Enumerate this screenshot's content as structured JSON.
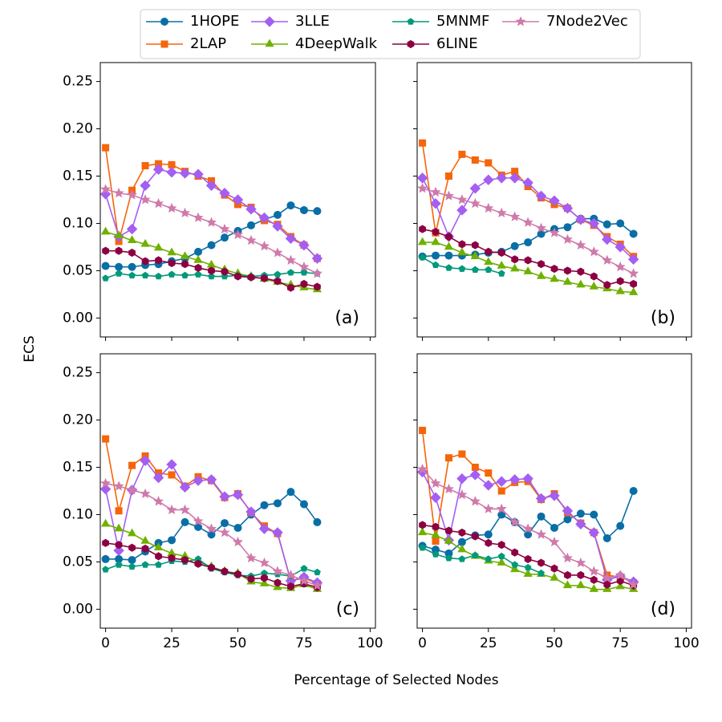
{
  "xlabel": "Percentage of Selected Nodes",
  "ylabel": "ECS",
  "chart_data": [
    {
      "type": "line",
      "annotation": "(a)",
      "x": [
        0,
        5,
        10,
        15,
        20,
        25,
        30,
        35,
        40,
        45,
        50,
        55,
        60,
        65,
        70,
        75,
        80
      ],
      "xlim": [
        -2,
        102
      ],
      "ylim": [
        -0.02,
        0.27
      ],
      "xticks": [
        0,
        25,
        50,
        75,
        100
      ],
      "yticks": [
        {
          "value": 0,
          "label": "0.00"
        },
        {
          "value": 0.05,
          "label": "0.05"
        },
        {
          "value": 0.1,
          "label": "0.10"
        },
        {
          "value": 0.15,
          "label": "0.15"
        },
        {
          "value": 0.2,
          "label": "0.20"
        },
        {
          "value": 0.25,
          "label": "0.25"
        }
      ],
      "series": [
        {
          "name": "1HOPE",
          "color": "#0a6ea6",
          "marker": "circle",
          "values": [
            0.055,
            0.054,
            0.054,
            0.056,
            0.057,
            0.06,
            0.063,
            0.07,
            0.077,
            0.085,
            0.092,
            0.098,
            0.104,
            0.109,
            0.119,
            0.114,
            0.113
          ]
        },
        {
          "name": "2LAP",
          "color": "#f5650a",
          "marker": "square",
          "values": [
            0.18,
            0.081,
            0.135,
            0.161,
            0.163,
            0.162,
            0.155,
            0.15,
            0.145,
            0.13,
            0.12,
            0.117,
            0.103,
            0.099,
            0.086,
            0.077,
            0.063
          ]
        },
        {
          "name": "3LLE",
          "color": "#a45ef2",
          "marker": "diamond",
          "values": [
            0.131,
            0.086,
            0.094,
            0.14,
            0.157,
            0.154,
            0.153,
            0.152,
            0.14,
            0.132,
            0.125,
            0.115,
            0.106,
            0.097,
            0.084,
            0.077,
            0.063
          ]
        },
        {
          "name": "4DeepWalk",
          "color": "#70b000",
          "marker": "triangle",
          "values": [
            0.091,
            0.087,
            0.082,
            0.078,
            0.074,
            0.069,
            0.065,
            0.061,
            0.056,
            0.051,
            0.047,
            0.044,
            0.041,
            0.038,
            0.035,
            0.032,
            0.03
          ]
        },
        {
          "name": "5MNMF",
          "color": "#00997a",
          "marker": "pentagon",
          "values": [
            0.042,
            0.047,
            0.045,
            0.045,
            0.044,
            0.046,
            0.045,
            0.046,
            0.044,
            0.044,
            0.045,
            0.044,
            0.045,
            0.046,
            0.048,
            0.048,
            0.047
          ]
        },
        {
          "name": "6LINE",
          "color": "#8c0042",
          "marker": "hexagon",
          "values": [
            0.071,
            0.071,
            0.069,
            0.06,
            0.061,
            0.058,
            0.057,
            0.053,
            0.05,
            0.049,
            0.044,
            0.043,
            0.042,
            0.039,
            0.032,
            0.036,
            0.033
          ]
        },
        {
          "name": "7Node2Vec",
          "color": "#cf7aab",
          "marker": "star",
          "values": [
            0.136,
            0.132,
            0.13,
            0.125,
            0.121,
            0.116,
            0.111,
            0.106,
            0.101,
            0.094,
            0.088,
            0.082,
            0.076,
            0.069,
            0.061,
            0.054,
            0.047
          ]
        }
      ]
    },
    {
      "type": "line",
      "annotation": "(b)",
      "x": [
        0,
        5,
        10,
        15,
        20,
        25,
        30,
        35,
        40,
        45,
        50,
        55,
        60,
        65,
        70,
        75,
        80
      ],
      "xlim": [
        -2,
        102
      ],
      "ylim": [
        -0.02,
        0.27
      ],
      "xticks": [
        0,
        25,
        50,
        75,
        100
      ],
      "yticks": [
        {
          "value": 0,
          "label": "0.00"
        },
        {
          "value": 0.05,
          "label": "0.05"
        },
        {
          "value": 0.1,
          "label": "0.10"
        },
        {
          "value": 0.15,
          "label": "0.15"
        },
        {
          "value": 0.2,
          "label": "0.20"
        },
        {
          "value": 0.25,
          "label": "0.25"
        }
      ],
      "series": [
        {
          "name": "1HOPE",
          "color": "#0a6ea6",
          "marker": "circle",
          "values": [
            0.065,
            0.066,
            0.066,
            0.066,
            0.067,
            0.069,
            0.07,
            0.076,
            0.08,
            0.089,
            0.094,
            0.096,
            0.105,
            0.105,
            0.099,
            0.1,
            0.089
          ]
        },
        {
          "name": "2LAP",
          "color": "#f5650a",
          "marker": "square",
          "values": [
            0.185,
            0.09,
            0.15,
            0.173,
            0.167,
            0.164,
            0.151,
            0.155,
            0.139,
            0.127,
            0.12,
            0.116,
            0.104,
            0.098,
            0.086,
            0.078,
            0.065
          ]
        },
        {
          "name": "3LLE",
          "color": "#a45ef2",
          "marker": "diamond",
          "values": [
            0.148,
            0.121,
            0.086,
            0.114,
            0.137,
            0.146,
            0.148,
            0.148,
            0.143,
            0.129,
            0.124,
            0.116,
            0.104,
            0.1,
            0.083,
            0.075,
            0.062
          ]
        },
        {
          "name": "4DeepWalk",
          "color": "#70b000",
          "marker": "triangle",
          "values": [
            0.08,
            0.08,
            0.075,
            0.069,
            0.065,
            0.059,
            0.055,
            0.052,
            0.049,
            0.044,
            0.041,
            0.038,
            0.035,
            0.033,
            0.031,
            0.028,
            0.027
          ]
        },
        {
          "name": "5MNMF",
          "color": "#00997a",
          "marker": "pentagon",
          "values": [
            0.064,
            0.056,
            0.053,
            0.052,
            0.051,
            0.051,
            0.047,
            null,
            null,
            null,
            null,
            null,
            null,
            null,
            null,
            null,
            null
          ]
        },
        {
          "name": "6LINE",
          "color": "#8c0042",
          "marker": "hexagon",
          "values": [
            0.094,
            0.091,
            0.086,
            0.078,
            0.077,
            0.07,
            0.069,
            0.062,
            0.061,
            0.057,
            0.052,
            0.05,
            0.049,
            0.044,
            0.035,
            0.039,
            0.036
          ]
        },
        {
          "name": "7Node2Vec",
          "color": "#cf7aab",
          "marker": "star",
          "values": [
            0.137,
            0.133,
            0.129,
            0.125,
            0.121,
            0.116,
            0.111,
            0.107,
            0.101,
            0.095,
            0.09,
            0.083,
            0.077,
            0.07,
            0.061,
            0.054,
            0.047
          ]
        }
      ]
    },
    {
      "type": "line",
      "annotation": "(c)",
      "x": [
        0,
        5,
        10,
        15,
        20,
        25,
        30,
        35,
        40,
        45,
        50,
        55,
        60,
        65,
        70,
        75,
        80
      ],
      "xlim": [
        -2,
        102
      ],
      "ylim": [
        -0.02,
        0.27
      ],
      "xticks": [
        0,
        25,
        50,
        75,
        100
      ],
      "yticks": [
        {
          "value": 0,
          "label": "0.00"
        },
        {
          "value": 0.05,
          "label": "0.05"
        },
        {
          "value": 0.1,
          "label": "0.10"
        },
        {
          "value": 0.15,
          "label": "0.15"
        },
        {
          "value": 0.2,
          "label": "0.20"
        },
        {
          "value": 0.25,
          "label": "0.25"
        }
      ],
      "series": [
        {
          "name": "1HOPE",
          "color": "#0a6ea6",
          "marker": "circle",
          "values": [
            0.053,
            0.053,
            0.052,
            0.061,
            0.07,
            0.073,
            0.092,
            0.087,
            0.079,
            0.091,
            0.086,
            0.1,
            0.11,
            0.112,
            0.124,
            0.111,
            0.092
          ]
        },
        {
          "name": "2LAP",
          "color": "#f5650a",
          "marker": "square",
          "values": [
            0.18,
            0.104,
            0.152,
            0.162,
            0.144,
            0.142,
            0.13,
            0.14,
            0.136,
            0.118,
            0.122,
            0.102,
            0.088,
            0.08,
            0.03,
            0.033,
            0.027
          ]
        },
        {
          "name": "3LLE",
          "color": "#a45ef2",
          "marker": "diamond",
          "values": [
            0.127,
            0.062,
            0.126,
            0.157,
            0.139,
            0.153,
            0.129,
            0.136,
            0.137,
            0.119,
            0.121,
            0.103,
            0.085,
            0.081,
            0.03,
            0.034,
            0.028
          ]
        },
        {
          "name": "4DeepWalk",
          "color": "#70b000",
          "marker": "triangle",
          "values": [
            0.09,
            0.085,
            0.08,
            0.072,
            0.065,
            0.059,
            0.056,
            0.05,
            0.045,
            0.04,
            0.038,
            0.029,
            0.027,
            0.023,
            0.022,
            0.026,
            0.021
          ]
        },
        {
          "name": "5MNMF",
          "color": "#00997a",
          "marker": "pentagon",
          "values": [
            0.042,
            0.047,
            0.045,
            0.047,
            0.047,
            0.051,
            0.05,
            0.053,
            0.043,
            0.039,
            0.036,
            0.035,
            0.038,
            0.037,
            0.035,
            0.043,
            0.039
          ]
        },
        {
          "name": "6LINE",
          "color": "#8c0042",
          "marker": "hexagon",
          "values": [
            0.07,
            0.068,
            0.065,
            0.064,
            0.056,
            0.054,
            0.052,
            0.048,
            0.044,
            0.04,
            0.037,
            0.032,
            0.033,
            0.028,
            0.024,
            0.027,
            0.023
          ]
        },
        {
          "name": "7Node2Vec",
          "color": "#cf7aab",
          "marker": "star",
          "values": [
            0.133,
            0.13,
            0.126,
            0.122,
            0.114,
            0.105,
            0.105,
            0.093,
            0.085,
            0.081,
            0.071,
            0.054,
            0.049,
            0.04,
            0.036,
            0.03,
            0.025
          ]
        }
      ]
    },
    {
      "type": "line",
      "annotation": "(d)",
      "x": [
        0,
        5,
        10,
        15,
        20,
        25,
        30,
        35,
        40,
        45,
        50,
        55,
        60,
        65,
        70,
        75,
        80
      ],
      "xlim": [
        -2,
        102
      ],
      "ylim": [
        -0.02,
        0.27
      ],
      "xticks": [
        0,
        25,
        50,
        75,
        100
      ],
      "yticks": [
        {
          "value": 0,
          "label": "0.00"
        },
        {
          "value": 0.05,
          "label": "0.05"
        },
        {
          "value": 0.1,
          "label": "0.10"
        },
        {
          "value": 0.15,
          "label": "0.15"
        },
        {
          "value": 0.2,
          "label": "0.20"
        },
        {
          "value": 0.25,
          "label": "0.25"
        }
      ],
      "series": [
        {
          "name": "1HOPE",
          "color": "#0a6ea6",
          "marker": "circle",
          "values": [
            0.067,
            0.063,
            0.059,
            0.071,
            0.078,
            0.079,
            0.1,
            0.092,
            0.079,
            0.098,
            0.086,
            0.095,
            0.101,
            0.1,
            0.075,
            0.088,
            0.125
          ]
        },
        {
          "name": "2LAP",
          "color": "#f5650a",
          "marker": "square",
          "values": [
            0.189,
            0.072,
            0.16,
            0.164,
            0.15,
            0.144,
            0.125,
            0.134,
            0.135,
            0.116,
            0.122,
            0.102,
            0.091,
            0.081,
            0.036,
            0.034,
            0.028
          ]
        },
        {
          "name": "3LLE",
          "color": "#a45ef2",
          "marker": "diamond",
          "values": [
            0.145,
            0.118,
            0.073,
            0.138,
            0.142,
            0.131,
            0.135,
            0.137,
            0.138,
            0.117,
            0.12,
            0.104,
            0.09,
            0.081,
            0.031,
            0.035,
            0.029
          ]
        },
        {
          "name": "4DeepWalk",
          "color": "#70b000",
          "marker": "triangle",
          "values": [
            0.081,
            0.078,
            0.072,
            0.063,
            0.056,
            0.051,
            0.049,
            0.042,
            0.037,
            0.037,
            0.033,
            0.025,
            0.025,
            0.021,
            0.021,
            0.024,
            0.021
          ]
        },
        {
          "name": "5MNMF",
          "color": "#00997a",
          "marker": "pentagon",
          "values": [
            0.065,
            0.058,
            0.054,
            0.053,
            0.057,
            0.053,
            0.056,
            0.047,
            0.044,
            0.038,
            null,
            null,
            null,
            null,
            null,
            null,
            null
          ]
        },
        {
          "name": "6LINE",
          "color": "#8c0042",
          "marker": "hexagon",
          "values": [
            0.089,
            0.087,
            0.083,
            0.081,
            0.077,
            0.07,
            0.068,
            0.06,
            0.053,
            0.049,
            0.043,
            0.036,
            0.036,
            0.031,
            0.026,
            0.03,
            0.025
          ]
        },
        {
          "name": "7Node2Vec",
          "color": "#cf7aab",
          "marker": "star",
          "values": [
            0.148,
            0.133,
            0.127,
            0.121,
            0.114,
            0.106,
            0.106,
            0.092,
            0.085,
            0.079,
            0.071,
            0.054,
            0.049,
            0.04,
            0.033,
            0.036,
            0.026
          ]
        }
      ]
    }
  ]
}
